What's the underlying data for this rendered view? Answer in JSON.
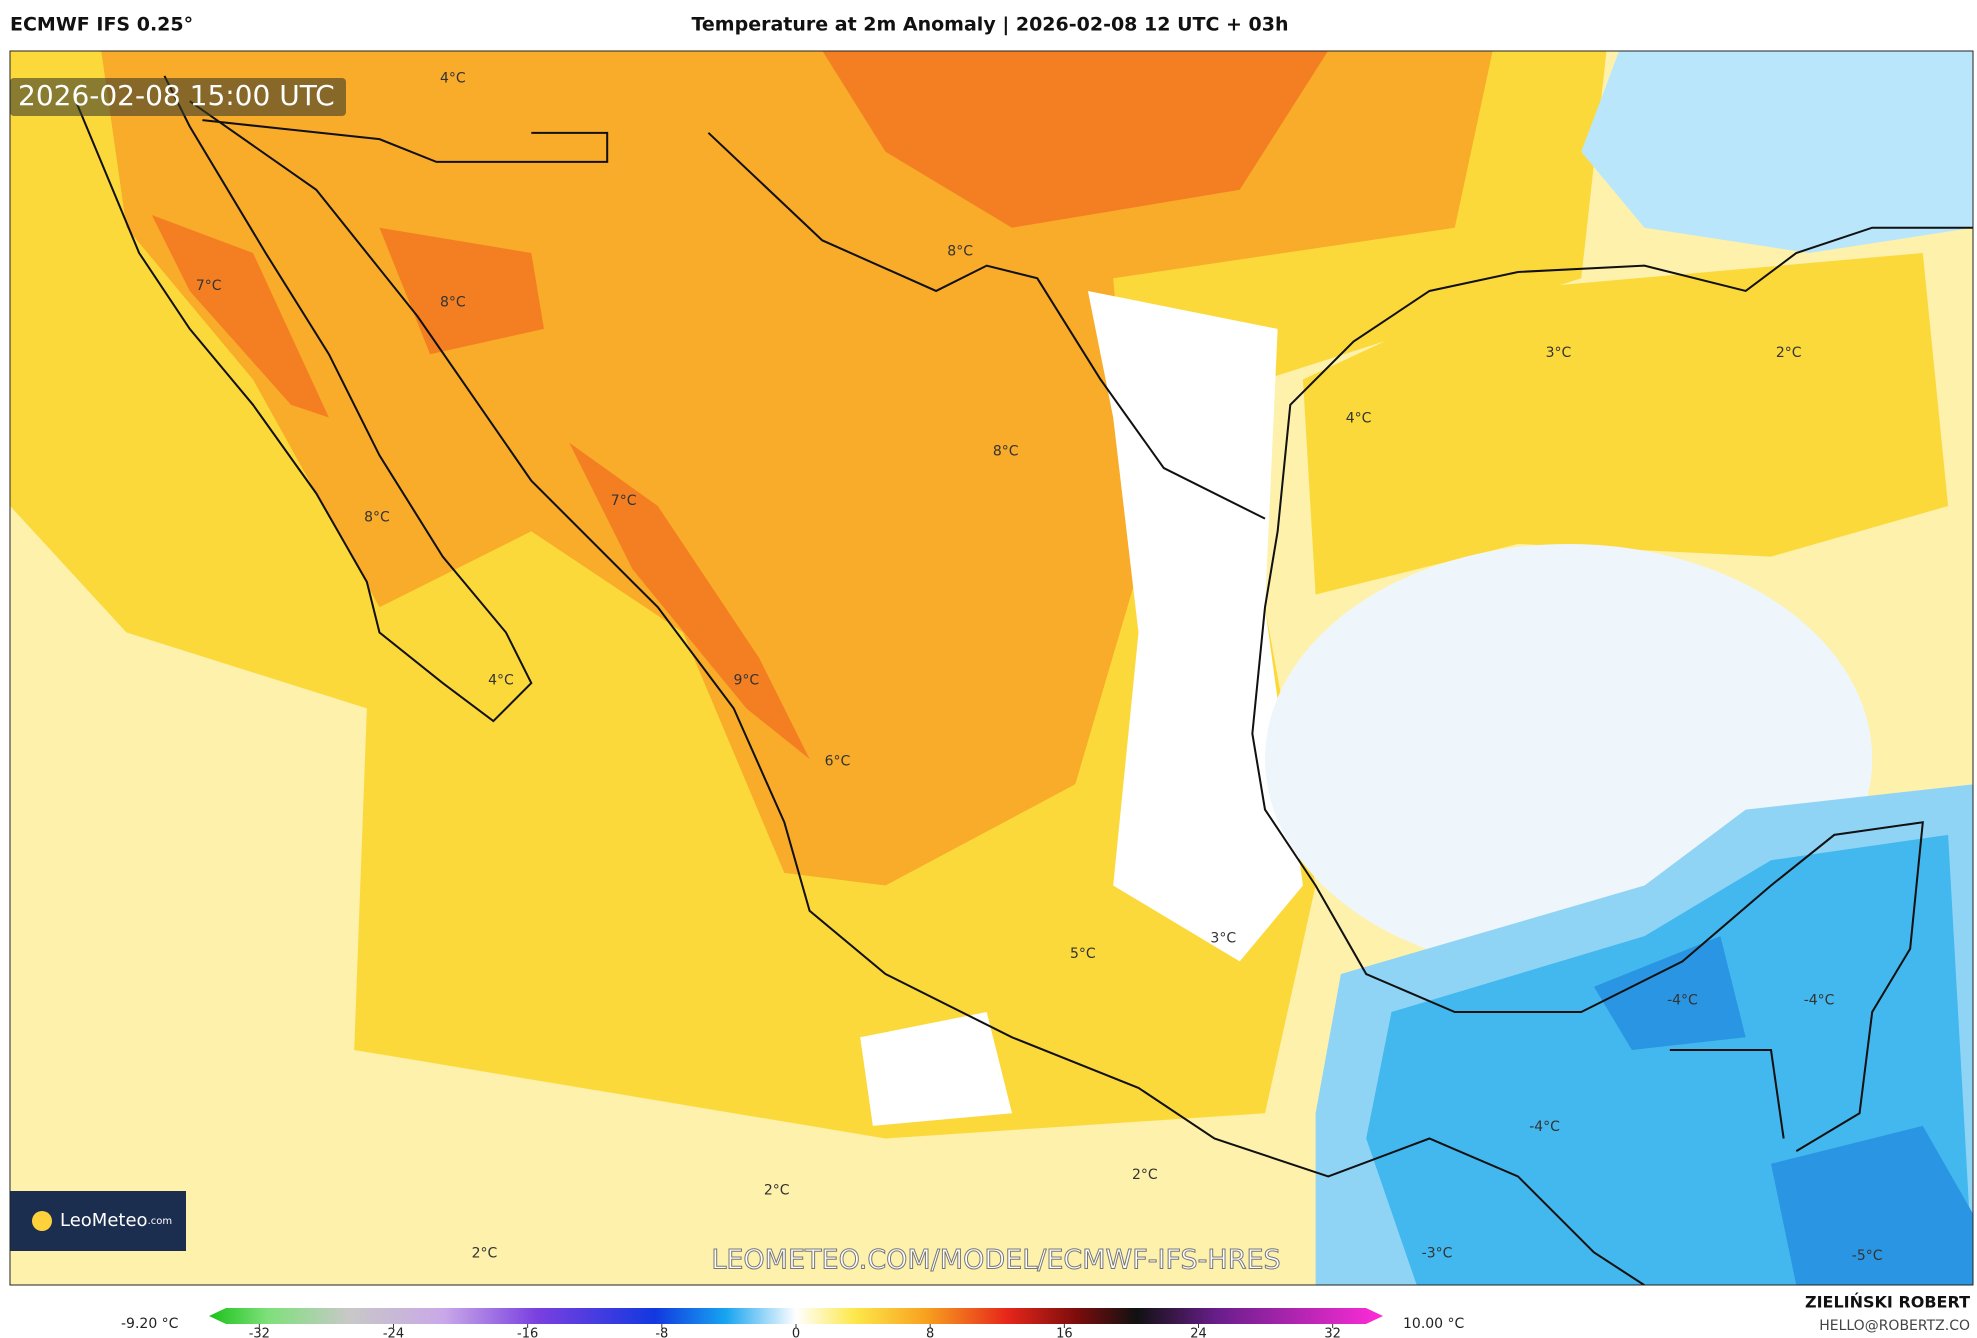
{
  "header": {
    "model": "ECMWF IFS 0.25°",
    "title": "Temperature at 2m Anomaly | 2026-02-08 12 UTC + 03h"
  },
  "map": {
    "valid_time": "2026-02-08 15:00 UTC",
    "watermark": "LEOMETEO.COM/MODEL/ECMWF-IFS-HRES",
    "logo": "LeoMeteo",
    "logo_suffix": ".com",
    "contour_labels": [
      "4°C",
      "7°C",
      "8°C",
      "8°C",
      "3°C",
      "2°C",
      "4°C",
      "8°C",
      "7°C",
      "8°C",
      "4°C",
      "9°C",
      "6°C",
      "5°C",
      "3°C",
      "-4°C",
      "-4°C",
      "-4°C",
      "2°C",
      "2°C",
      "2°C",
      "-3°C",
      "-5°C"
    ]
  },
  "colorbar": {
    "min_label": "-9.20 °C",
    "max_label": "10.00 °C",
    "lim": [
      -35,
      35
    ],
    "ticks": [
      -32,
      -24,
      -16,
      -8,
      0,
      8,
      16,
      24,
      32
    ]
  },
  "footer": {
    "author": "ZIELIŃSKI ROBERT",
    "email": "HELLO@ROBERTZ.CO"
  }
}
